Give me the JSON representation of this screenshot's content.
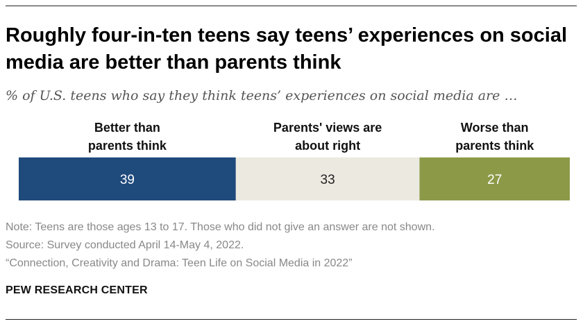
{
  "title": "Roughly four-in-ten teens say teens’ experiences on social media are better than parents think",
  "subtitle": "% of U.S. teens who say they think teens’ experiences on social media are …",
  "chart_data": {
    "type": "bar",
    "orientation": "horizontal-stacked",
    "categories": [
      "Better than parents think",
      "Parents' views are about right",
      "Worse than parents think"
    ],
    "category_lines": [
      [
        "Better than",
        "parents think"
      ],
      [
        "Parents' views are",
        "about right"
      ],
      [
        "Worse than",
        "parents think"
      ]
    ],
    "values": [
      39,
      33,
      27
    ],
    "colors": [
      "#1f4a7c",
      "#ece9e0",
      "#8c9a48"
    ],
    "label_colors": [
      "#ffffff",
      "#222222",
      "#ffffff"
    ],
    "legend": "top",
    "grid": false
  },
  "notes": {
    "note": "Note: Teens are those ages 13 to 17. Those who did not give an answer are not shown.",
    "source": "Source: Survey conducted April 14-May 4, 2022.",
    "report": "“Connection, Creativity and Drama: Teen Life on Social Media in 2022”"
  },
  "org": "PEW RESEARCH CENTER"
}
